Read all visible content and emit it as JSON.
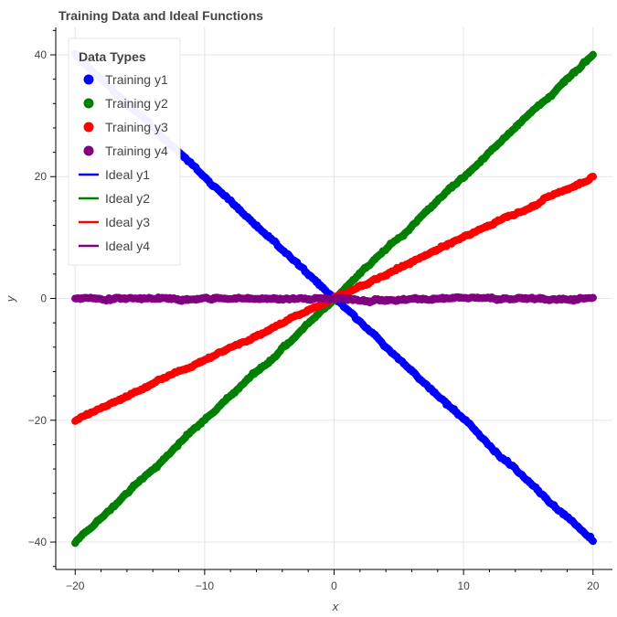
{
  "chart_data": {
    "type": "scatter",
    "title": "Training Data and Ideal Functions",
    "xlabel": "x",
    "ylabel": "y",
    "xlim": [
      -21.5,
      21.5
    ],
    "ylim": [
      -44.5,
      44.5
    ],
    "x_ticks": [
      -20,
      -10,
      0,
      10,
      20
    ],
    "y_ticks": [
      -40,
      -20,
      0,
      20,
      40
    ],
    "x_tick_labels": [
      "−20",
      "−10",
      "0",
      "10",
      "20"
    ],
    "y_tick_labels": [
      "−40",
      "−20",
      "0",
      "20",
      "40"
    ],
    "grid": true,
    "x_range": [
      -20,
      20
    ],
    "legend": {
      "title": "Data Types",
      "position": "top-left"
    },
    "series": [
      {
        "name": "Training y1",
        "kind": "scatter",
        "color": "#0000ff",
        "function": "y = -2x",
        "slope": -2,
        "noise": 0.5
      },
      {
        "name": "Training y2",
        "kind": "scatter",
        "color": "#008000",
        "function": "y = 2x",
        "slope": 2,
        "noise": 0.5
      },
      {
        "name": "Training y3",
        "kind": "scatter",
        "color": "#ff0000",
        "function": "y = x",
        "slope": 1,
        "noise": 0.5
      },
      {
        "name": "Training y4",
        "kind": "scatter",
        "color": "#800080",
        "function": "y = 0",
        "slope": 0,
        "noise": 0.5
      },
      {
        "name": "Ideal y1",
        "kind": "line",
        "color": "#0000ff",
        "slope": -2
      },
      {
        "name": "Ideal y2",
        "kind": "line",
        "color": "#008000",
        "slope": 2
      },
      {
        "name": "Ideal y3",
        "kind": "line",
        "color": "#ff0000",
        "slope": 1
      },
      {
        "name": "Ideal y4",
        "kind": "line",
        "color": "#800080",
        "slope": 0
      }
    ]
  }
}
